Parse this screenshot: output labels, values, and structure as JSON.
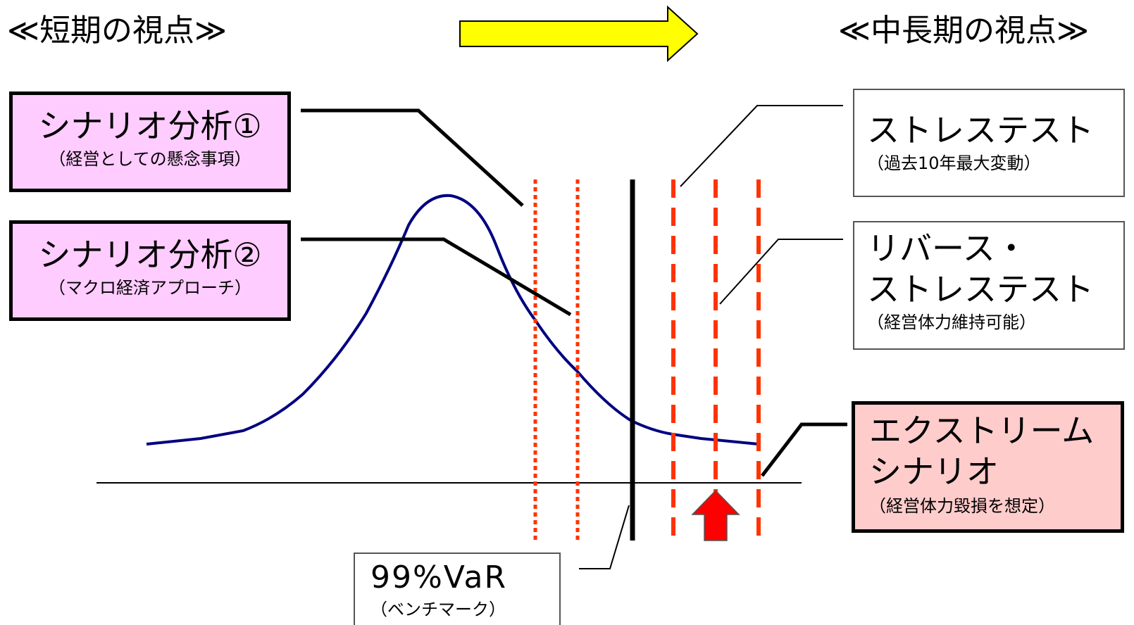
{
  "header": {
    "left": "≪短期の視点≫",
    "right": "≪中長期の視点≫"
  },
  "boxes": {
    "scenario1": {
      "title": "シナリオ分析①",
      "sub": "（経営としての懸念事項）"
    },
    "scenario2": {
      "title": "シナリオ分析②",
      "sub": "（マクロ経済アプローチ）"
    },
    "stress": {
      "title": "ストレステスト",
      "sub": "（過去10年最大変動）"
    },
    "reverse": {
      "title1": "リバース・",
      "title2": "ストレステスト",
      "sub": "（経営体力維持可能）"
    },
    "extreme": {
      "title1": "エクストリーム",
      "title2": "シナリオ",
      "sub": "（経営体力毀損を想定）"
    },
    "var": {
      "title": "99%VaR",
      "sub": "（ベンチマーク）"
    }
  },
  "colors": {
    "pink_box": "#ffccff",
    "red_box": "#ffcccc",
    "curve": "#000080",
    "dashed_lines": "#ff3300",
    "arrow_yellow": "#ffff00",
    "arrow_red": "#ff0000"
  }
}
